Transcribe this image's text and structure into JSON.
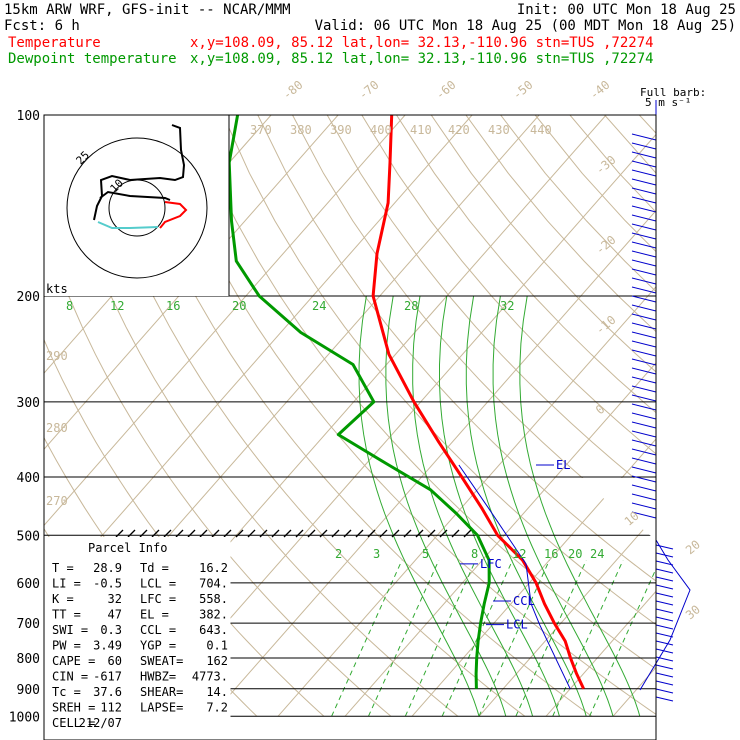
{
  "header": {
    "line1_left": "15km ARW WRF, GFS-init  -- NCAR/MMM",
    "line1_right": "Init: 00 UTC Mon 18 Aug 25",
    "line2_left": "Fcst:    6 h",
    "line2_right": "Valid: 06 UTC Mon 18 Aug 25 (00 MDT Mon 18 Aug 25)",
    "temp_label": "Temperature",
    "temp_info": "x,y=108.09, 85.12   lat,lon= 32.13,-110.96   stn=TUS ,72274",
    "dew_label": "Dewpoint temperature",
    "dew_info": "x,y=108.09, 85.12   lat,lon= 32.13,-110.96   stn=TUS ,72274",
    "temp_color": "#ff0000",
    "dew_color": "#009900"
  },
  "barb_legend": {
    "title": "Full barb:",
    "value": "5 m s⁻¹"
  },
  "hodograph": {
    "units": "kts",
    "ring_labels": [
      "25",
      "10"
    ]
  },
  "chart_data": {
    "type": "line",
    "title": "Skew-T log-P sounding",
    "pressure_levels": [
      "100",
      "200",
      "300",
      "400",
      "500",
      "600",
      "700",
      "800",
      "900",
      "1000"
    ],
    "isotherm_labels_top": [
      "-80",
      "-70",
      "-60",
      "-50",
      "-40"
    ],
    "isotherm_labels_right": [
      "-30",
      "-20",
      "-10",
      "0",
      "10",
      "20",
      "30",
      "40"
    ],
    "theta_labels": [
      "370",
      "380",
      "390",
      "400",
      "410",
      "420",
      "430",
      "440",
      "290",
      "280",
      "270"
    ],
    "moist_adiabat_labels_200": [
      "8",
      "12",
      "16",
      "20",
      "24",
      "28",
      "32"
    ],
    "mixing_ratio_labels": [
      "2",
      "3",
      "5",
      "8",
      "12",
      "16",
      "20",
      "24"
    ],
    "level_markers": [
      "EL",
      "LFC",
      "CCL",
      "LCL"
    ],
    "series": [
      {
        "name": "Temperature",
        "color": "#ff0000",
        "points": [
          [
            100,
            -72
          ],
          [
            120,
            -66
          ],
          [
            140,
            -61
          ],
          [
            170,
            -56
          ],
          [
            200,
            -51
          ],
          [
            250,
            -41
          ],
          [
            300,
            -31
          ],
          [
            350,
            -22
          ],
          [
            400,
            -14
          ],
          [
            450,
            -7
          ],
          [
            500,
            -1
          ],
          [
            550,
            6
          ],
          [
            600,
            11
          ],
          [
            650,
            15
          ],
          [
            700,
            19
          ],
          [
            750,
            23
          ],
          [
            800,
            26
          ],
          [
            850,
            29
          ],
          [
            900,
            32
          ]
        ]
      },
      {
        "name": "Dewpoint temperature",
        "color": "#009900",
        "points": [
          [
            100,
            -95
          ],
          [
            120,
            -90
          ],
          [
            150,
            -82
          ],
          [
            175,
            -76
          ],
          [
            200,
            -68
          ],
          [
            230,
            -57
          ],
          [
            260,
            -45
          ],
          [
            300,
            -37
          ],
          [
            340,
            -38
          ],
          [
            380,
            -27
          ],
          [
            420,
            -17
          ],
          [
            460,
            -10
          ],
          [
            500,
            -4
          ],
          [
            550,
            1
          ],
          [
            600,
            4
          ],
          [
            650,
            6
          ],
          [
            700,
            8
          ],
          [
            750,
            10
          ],
          [
            800,
            12
          ],
          [
            850,
            14
          ],
          [
            900,
            16
          ]
        ]
      }
    ],
    "parcel_info": {
      "title": "Parcel Info",
      "rows": [
        [
          "T  =",
          "28.9",
          "Td =",
          "16.2"
        ],
        [
          "LI =",
          "-0.5",
          "LCL =",
          "704."
        ],
        [
          "K  =",
          "32",
          "LFC =",
          "558."
        ],
        [
          "TT =",
          "47",
          "EL  =",
          "382."
        ],
        [
          "SWI =",
          "0.3",
          "CCL =",
          "643."
        ],
        [
          "PW  =",
          "3.49",
          "YGP =",
          "0.1"
        ],
        [
          "CAPE =",
          "60",
          "SWEAT=",
          "162"
        ],
        [
          "CIN  =",
          "-617",
          "HWBZ=",
          "4773."
        ],
        [
          "Tc  =",
          "37.6",
          "SHEAR=",
          "14."
        ],
        [
          "SREH =",
          "112",
          "LAPSE=",
          "7.2"
        ],
        [
          "CELL =",
          "212/07",
          "",
          ""
        ]
      ]
    }
  }
}
